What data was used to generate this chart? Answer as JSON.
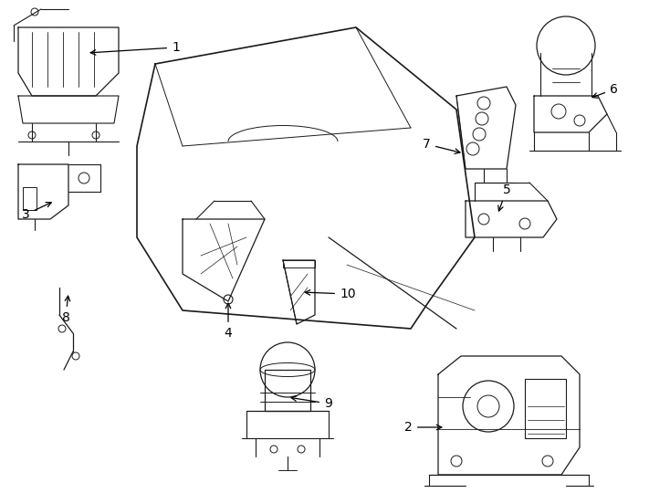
{
  "bg_color": "#ffffff",
  "line_color": "#1a1a1a",
  "label_color": "#000000",
  "fig_width": 7.34,
  "fig_height": 5.4,
  "dpi": 100
}
